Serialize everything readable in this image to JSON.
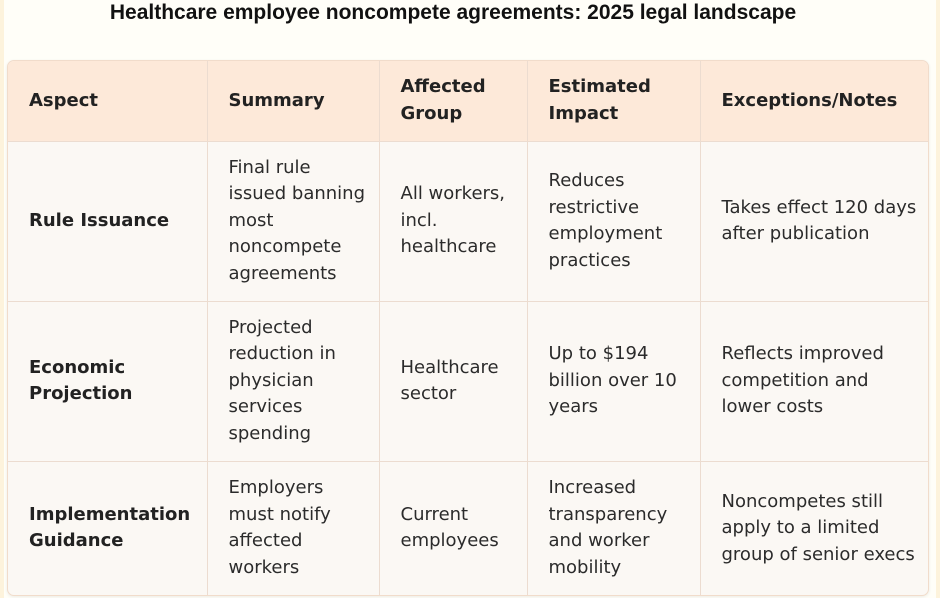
{
  "title": "Healthcare employee noncompete agreements: 2025 legal landscape",
  "table": {
    "headers": [
      "Aspect",
      "Summary",
      "Affected Group",
      "Estimated Impact",
      "Exceptions/Notes"
    ],
    "rows": [
      {
        "aspect": "Rule Issuance",
        "summary": "Final rule issued banning most noncompete agreements",
        "affected_group": "All workers, incl. healthcare",
        "estimated_impact": "Reduces restrictive employment practices",
        "notes": "Takes effect 120 days after publication"
      },
      {
        "aspect": "Economic Projection",
        "summary": "Projected reduction in physician services spending",
        "affected_group": "Healthcare sector",
        "estimated_impact": "Up to $194 billion over 10 years",
        "notes": "Reflects improved competition and lower costs"
      },
      {
        "aspect": "Implementation Guidance",
        "summary": "Employers must notify affected workers",
        "affected_group": "Current employees",
        "estimated_impact": "Increased transparency and worker mobility",
        "notes": "Noncompetes still apply to a limited group of senior execs"
      }
    ]
  }
}
